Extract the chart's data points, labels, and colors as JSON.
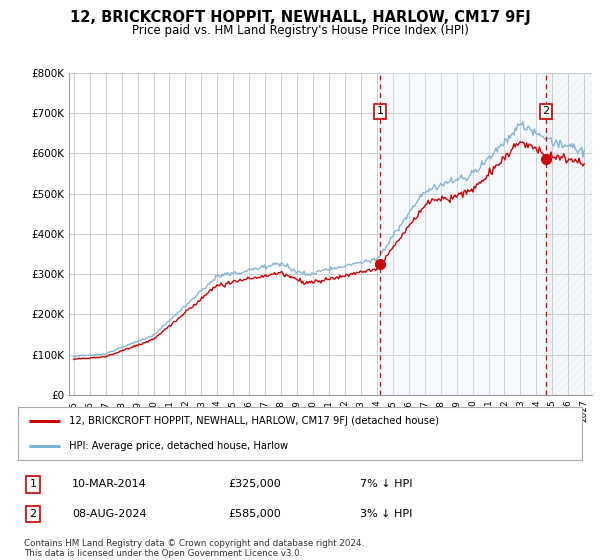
{
  "title": "12, BRICKCROFT HOPPIT, NEWHALL, HARLOW, CM17 9FJ",
  "subtitle": "Price paid vs. HM Land Registry's House Price Index (HPI)",
  "legend_label_red": "12, BRICKCROFT HOPPIT, NEWHALL, HARLOW, CM17 9FJ (detached house)",
  "legend_label_blue": "HPI: Average price, detached house, Harlow",
  "annotation1_label": "1",
  "annotation1_date": "10-MAR-2014",
  "annotation1_price": "£325,000",
  "annotation1_hpi": "7% ↓ HPI",
  "annotation2_label": "2",
  "annotation2_date": "08-AUG-2024",
  "annotation2_price": "£585,000",
  "annotation2_hpi": "3% ↓ HPI",
  "footer": "Contains HM Land Registry data © Crown copyright and database right 2024.\nThis data is licensed under the Open Government Licence v3.0.",
  "red_color": "#cc0000",
  "blue_color": "#7ab0d4",
  "vline_color": "#cc0000",
  "grid_color": "#cccccc",
  "shade_color": "#ddeeff",
  "hatch_color": "#c0d4e8",
  "background_color": "#ffffff",
  "ylim": [
    0,
    800000
  ],
  "yticks": [
    0,
    100000,
    200000,
    300000,
    400000,
    500000,
    600000,
    700000,
    800000
  ],
  "ytick_labels": [
    "£0",
    "£100K",
    "£200K",
    "£300K",
    "£400K",
    "£500K",
    "£600K",
    "£700K",
    "£800K"
  ],
  "x_start_year": 1995,
  "x_end_year": 2027,
  "purchase1_year": 2014.19,
  "purchase1_price": 325000,
  "purchase2_year": 2024.6,
  "purchase2_price": 585000
}
